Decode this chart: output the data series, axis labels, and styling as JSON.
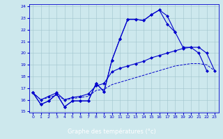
{
  "xlabel": "Graphe des températures (°c)",
  "xlim": [
    -0.5,
    23.5
  ],
  "ylim": [
    14.9,
    24.2
  ],
  "yticks": [
    15,
    16,
    17,
    18,
    19,
    20,
    21,
    22,
    23,
    24
  ],
  "xticks": [
    0,
    1,
    2,
    3,
    4,
    5,
    6,
    7,
    8,
    9,
    10,
    11,
    12,
    13,
    14,
    15,
    16,
    17,
    18,
    19,
    20,
    21,
    22,
    23
  ],
  "bg_color": "#cde8ed",
  "line_color": "#0000cc",
  "grid_color": "#9fc4cc",
  "xlabel_bg": "#1a1aaa",
  "xlabel_fg": "#ffffff",
  "line1_y": [
    16.6,
    15.6,
    15.9,
    16.5,
    15.4,
    15.9,
    15.9,
    15.9,
    17.4,
    16.7,
    19.4,
    21.2,
    22.9,
    22.9,
    22.8,
    23.3,
    23.7,
    23.2,
    21.8,
    null,
    null,
    null,
    null,
    null
  ],
  "line2_y": [
    16.6,
    15.6,
    15.9,
    16.5,
    15.4,
    15.9,
    15.9,
    15.9,
    17.4,
    16.7,
    19.4,
    21.2,
    22.9,
    22.9,
    22.8,
    23.3,
    23.7,
    22.5,
    21.8,
    20.5,
    20.5,
    20.0,
    18.5,
    null
  ],
  "line3_y": [
    16.6,
    16.0,
    16.3,
    16.6,
    16.0,
    16.2,
    16.3,
    16.5,
    17.2,
    17.4,
    18.4,
    18.7,
    18.9,
    19.1,
    19.3,
    19.6,
    19.8,
    20.0,
    20.2,
    20.4,
    20.5,
    20.5,
    20.0,
    18.5
  ],
  "line4_y": [
    16.6,
    16.0,
    16.2,
    16.4,
    16.0,
    16.1,
    16.2,
    16.3,
    16.8,
    16.9,
    17.3,
    17.5,
    17.7,
    17.9,
    18.1,
    18.3,
    18.5,
    18.7,
    18.9,
    19.0,
    19.1,
    19.1,
    19.0,
    18.5
  ]
}
